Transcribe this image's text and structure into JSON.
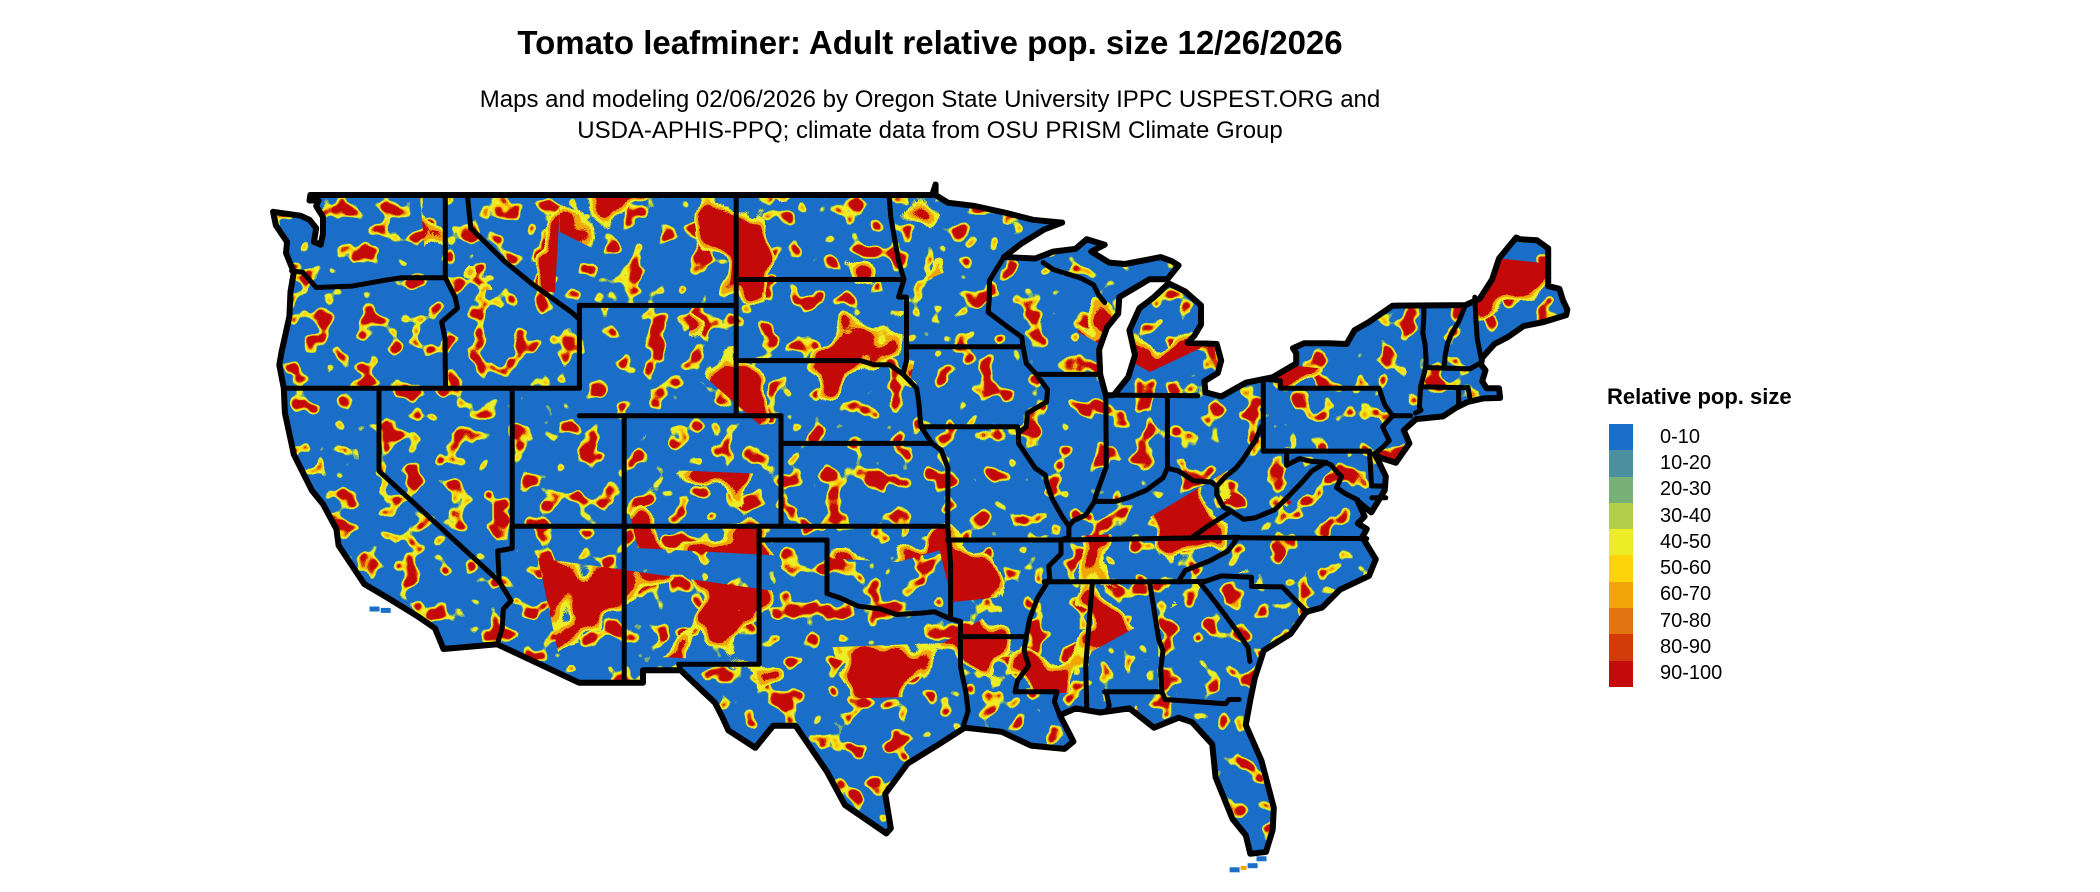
{
  "header": {
    "title": "Tomato leafminer: Adult relative pop. size 12/26/2026",
    "subtitle_line1": "Maps and modeling 02/06/2026 by Oregon State University IPPC USPEST.ORG and",
    "subtitle_line2": "USDA-APHIS-PPQ; climate data from OSU PRISM Climate Group"
  },
  "legend": {
    "title": "Relative pop. size",
    "items": [
      {
        "label": "0-10",
        "color": "#1b6fc8"
      },
      {
        "label": "10-20",
        "color": "#4b8fa0"
      },
      {
        "label": "20-30",
        "color": "#79b077"
      },
      {
        "label": "30-40",
        "color": "#b2cf4a"
      },
      {
        "label": "40-50",
        "color": "#eded27"
      },
      {
        "label": "50-60",
        "color": "#fdd40a"
      },
      {
        "label": "60-70",
        "color": "#f0a60a"
      },
      {
        "label": "70-80",
        "color": "#e27511"
      },
      {
        "label": "80-90",
        "color": "#d23b0a"
      },
      {
        "label": "90-100",
        "color": "#c40a0a"
      }
    ]
  },
  "map": {
    "region": "Continental United States",
    "kind": "raster relative population size map with state boundaries",
    "water_land_low_color": "#1b6fc8",
    "boundary_color": "#000000"
  }
}
